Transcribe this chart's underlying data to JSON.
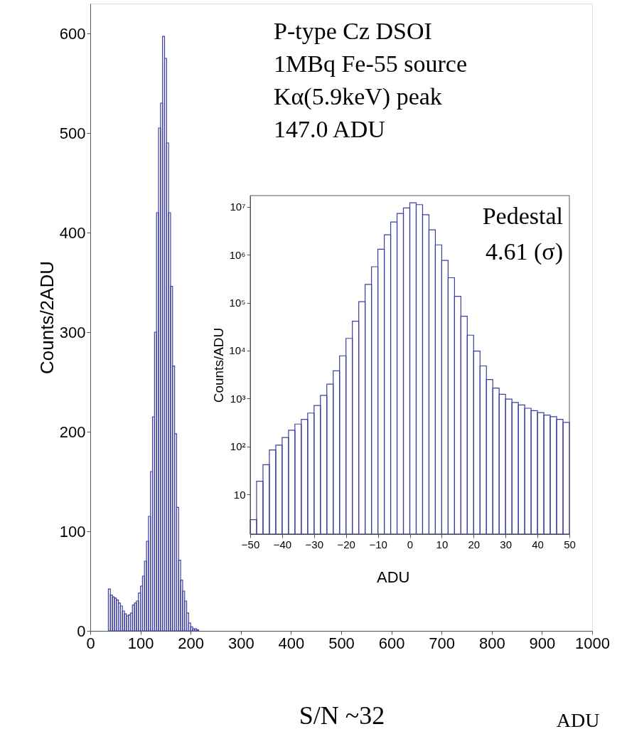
{
  "chart_data": [
    {
      "type": "histogram",
      "xlabel": "ADU",
      "ylabel": "Counts/2ADU",
      "color": "#3d3f9e",
      "bins": [
        36,
        40,
        44,
        48,
        52,
        56,
        60,
        64,
        68,
        72,
        76,
        80,
        84,
        88,
        92,
        96,
        100,
        104,
        108,
        112,
        116,
        120,
        124,
        128,
        132,
        136,
        140,
        144,
        148,
        152,
        156,
        160,
        164,
        168,
        172,
        176,
        180,
        184,
        188,
        192,
        196,
        200,
        204,
        208,
        212,
        216
      ],
      "values": [
        42,
        36,
        34,
        33,
        31,
        28,
        25,
        20,
        17,
        15,
        16,
        18,
        26,
        28,
        30,
        38,
        45,
        55,
        70,
        90,
        115,
        160,
        215,
        300,
        420,
        505,
        530,
        597,
        575,
        490,
        420,
        346,
        266,
        198,
        124,
        71,
        51,
        40,
        30,
        18,
        8,
        4,
        2,
        2,
        1
      ],
      "xlim": [
        0,
        1000
      ],
      "ylim": [
        0,
        630
      ],
      "xticks": [
        0,
        100,
        200,
        300,
        400,
        500,
        600,
        700,
        800,
        900,
        1000
      ],
      "yticks": [
        0,
        100,
        200,
        300,
        400,
        500,
        600
      ],
      "annotations": [
        "P-type Cz DSOI",
        "1MBq Fe-55 source",
        "Kα(5.9keV) peak",
        "147.0 ADU",
        "S/N ~32"
      ],
      "grid": false
    },
    {
      "type": "histogram",
      "xlabel": "ADU",
      "ylabel": "Counts/ADU",
      "color": "#3d3f9e",
      "log": "y",
      "bins": [
        -50,
        -48,
        -46,
        -44,
        -42,
        -40,
        -38,
        -36,
        -34,
        -32,
        -30,
        -28,
        -26,
        -24,
        -22,
        -20,
        -18,
        -16,
        -14,
        -12,
        -10,
        -8,
        -6,
        -4,
        -2,
        0,
        2,
        4,
        6,
        8,
        10,
        12,
        14,
        16,
        18,
        20,
        22,
        24,
        26,
        28,
        30,
        32,
        34,
        36,
        38,
        40,
        42,
        44,
        46,
        48,
        50
      ],
      "values": [
        3,
        19,
        42,
        85,
        107,
        155,
        220,
        295,
        370,
        500,
        720,
        1170,
        2000,
        3800,
        7800,
        18000,
        41000,
        105000,
        240000,
        560000,
        1300000,
        2600000,
        4800000,
        7200000,
        9400000,
        12000000,
        11000000,
        6800000,
        3300000,
        1600000,
        760000,
        330000,
        135000,
        52000,
        21000,
        9800,
        4800,
        2500,
        1660,
        1230,
        980,
        830,
        740,
        630,
        560,
        510,
        455,
        420,
        370,
        320
      ],
      "xlim": [
        -50,
        50
      ],
      "ylim": [
        1.5,
        17000000
      ],
      "xticks": [
        -50,
        -40,
        -30,
        -20,
        -10,
        0,
        10,
        20,
        30,
        40,
        50
      ],
      "yticks": [
        10,
        {
          "value": 100,
          "label": "10²"
        },
        {
          "value": 1000,
          "label": "10³"
        },
        {
          "value": 10000,
          "label": "10⁴"
        },
        {
          "value": 100000,
          "label": "10⁵"
        },
        {
          "value": 1000000,
          "label": "10⁶"
        },
        {
          "value": 10000000,
          "label": "10⁷"
        }
      ],
      "annotations": [
        "Pedestal",
        "4.61 (σ)"
      ],
      "grid": false
    }
  ]
}
